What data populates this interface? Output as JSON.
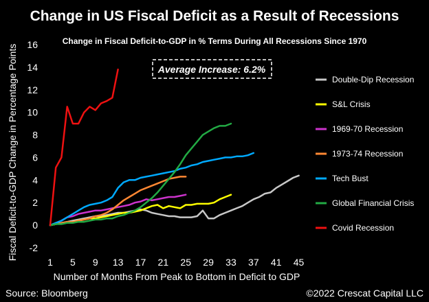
{
  "header": {
    "title": "Change in US Fiscal Deficit as a Result of Recessions",
    "subtitle": "Change in Fiscal Deficit-to-GDP in % Terms During All Recessions Since 1970"
  },
  "annotation": "Average Increase: 6.2%",
  "footer": {
    "source": "Source: Bloomberg",
    "copyright": "©2022 Crescat Capital LLC"
  },
  "chart_data": {
    "type": "line",
    "xlabel": "Number of Months From Peak to Bottom in Deficit to GDP",
    "ylabel": "Fiscal Deficit-to-GDP Change in Percentage Points",
    "xlim": [
      1,
      47
    ],
    "ylim": [
      -2,
      16
    ],
    "x_ticks": [
      1,
      5,
      9,
      13,
      17,
      21,
      25,
      29,
      33,
      37,
      41,
      45
    ],
    "y_ticks": [
      -2,
      0,
      2,
      4,
      6,
      8,
      10,
      12,
      14,
      16
    ],
    "grid": false,
    "legend_position": "right",
    "series": [
      {
        "name": "Double-Dip Recession",
        "color": "#c8c8c8",
        "x": [
          1,
          2,
          3,
          4,
          5,
          6,
          7,
          8,
          9,
          10,
          11,
          12,
          13,
          14,
          15,
          16,
          17,
          18,
          19,
          20,
          21,
          22,
          23,
          24,
          25,
          26,
          27,
          28,
          29,
          30,
          31,
          32,
          33,
          34,
          35,
          36,
          37,
          38,
          39,
          40,
          41,
          42,
          43,
          44,
          45
        ],
        "y": [
          0,
          0.1,
          0.2,
          0.3,
          0.4,
          0.5,
          0.6,
          0.7,
          0.8,
          0.8,
          0.9,
          1.0,
          1.1,
          1.1,
          1.2,
          1.3,
          1.4,
          1.3,
          1.1,
          1.0,
          0.9,
          0.8,
          0.8,
          0.7,
          0.7,
          0.7,
          0.8,
          1.3,
          0.6,
          0.6,
          0.9,
          1.1,
          1.3,
          1.5,
          1.7,
          2.0,
          2.3,
          2.5,
          2.8,
          2.9,
          3.3,
          3.6,
          3.9,
          4.2,
          4.4
        ]
      },
      {
        "name": "S&L Crisis",
        "color": "#ffff00",
        "x": [
          1,
          2,
          3,
          4,
          5,
          6,
          7,
          8,
          9,
          10,
          11,
          12,
          13,
          14,
          15,
          16,
          17,
          18,
          19,
          20,
          21,
          22,
          23,
          24,
          25,
          26,
          27,
          28,
          29,
          30,
          31,
          32,
          33
        ],
        "y": [
          0,
          0.1,
          0.2,
          0.2,
          0.3,
          0.4,
          0.5,
          0.6,
          0.6,
          0.7,
          0.8,
          0.9,
          1.0,
          1.1,
          1.1,
          1.2,
          1.3,
          1.5,
          1.7,
          1.8,
          1.5,
          1.7,
          1.6,
          1.5,
          1.8,
          1.8,
          1.9,
          1.9,
          1.9,
          2.0,
          2.3,
          2.5,
          2.7
        ]
      },
      {
        "name": "1969-70 Recession",
        "color": "#cc33cc",
        "x": [
          1,
          2,
          3,
          4,
          5,
          6,
          7,
          8,
          9,
          10,
          11,
          12,
          13,
          14,
          15,
          16,
          17,
          18,
          19,
          20,
          21,
          22,
          23,
          24,
          25
        ],
        "y": [
          0,
          0.2,
          0.4,
          0.7,
          0.8,
          1.0,
          1.1,
          1.2,
          1.3,
          1.3,
          1.4,
          1.5,
          1.6,
          1.7,
          1.8,
          2.0,
          2.1,
          2.3,
          2.2,
          2.3,
          2.4,
          2.5,
          2.5,
          2.6,
          2.7
        ]
      },
      {
        "name": "1973-74 Recession",
        "color": "#ff8833",
        "x": [
          1,
          2,
          3,
          4,
          5,
          6,
          7,
          8,
          9,
          10,
          11,
          12,
          13,
          14,
          15,
          16,
          17,
          18,
          19,
          20,
          21,
          22,
          23,
          24,
          25
        ],
        "y": [
          0,
          0.1,
          0.2,
          0.3,
          0.3,
          0.4,
          0.5,
          0.6,
          0.8,
          0.9,
          1.1,
          1.4,
          1.8,
          2.2,
          2.5,
          2.8,
          3.1,
          3.3,
          3.5,
          3.7,
          3.9,
          4.1,
          4.2,
          4.3,
          4.3
        ]
      },
      {
        "name": "Tech Bust",
        "color": "#00aaff",
        "x": [
          1,
          2,
          3,
          4,
          5,
          6,
          7,
          8,
          9,
          10,
          11,
          12,
          13,
          14,
          15,
          16,
          17,
          18,
          19,
          20,
          21,
          22,
          23,
          24,
          25,
          26,
          27,
          28,
          29,
          30,
          31,
          32,
          33,
          34,
          35,
          36,
          37
        ],
        "y": [
          0,
          0.2,
          0.4,
          0.7,
          1.0,
          1.3,
          1.6,
          1.8,
          1.9,
          2.0,
          2.2,
          2.5,
          3.3,
          3.8,
          4.0,
          4.0,
          4.2,
          4.3,
          4.4,
          4.5,
          4.6,
          4.7,
          4.8,
          5.0,
          5.1,
          5.3,
          5.4,
          5.6,
          5.7,
          5.8,
          5.9,
          6.0,
          6.0,
          6.1,
          6.1,
          6.2,
          6.4
        ]
      },
      {
        "name": "Global Financial Crisis",
        "color": "#22aa44",
        "x": [
          1,
          2,
          3,
          4,
          5,
          6,
          7,
          8,
          9,
          10,
          11,
          12,
          13,
          14,
          15,
          16,
          17,
          18,
          19,
          20,
          21,
          22,
          23,
          24,
          25,
          26,
          27,
          28,
          29,
          30,
          31,
          32,
          33
        ],
        "y": [
          0,
          0.1,
          0.1,
          0.2,
          0.2,
          0.3,
          0.3,
          0.4,
          0.5,
          0.5,
          0.6,
          0.6,
          0.8,
          0.9,
          1.1,
          1.3,
          1.6,
          2.0,
          2.4,
          2.9,
          3.5,
          4.1,
          4.7,
          5.4,
          6.2,
          6.8,
          7.4,
          8.0,
          8.3,
          8.6,
          8.8,
          8.8,
          9.0
        ]
      },
      {
        "name": "Covid Recession",
        "color": "#ee1111",
        "x": [
          1,
          2,
          3,
          4,
          5,
          6,
          7,
          8,
          9,
          10,
          11,
          12,
          13
        ],
        "y": [
          0,
          5.1,
          6.0,
          10.5,
          9.0,
          9.0,
          10.0,
          10.5,
          10.2,
          10.8,
          11.0,
          11.3,
          13.8
        ]
      }
    ]
  }
}
